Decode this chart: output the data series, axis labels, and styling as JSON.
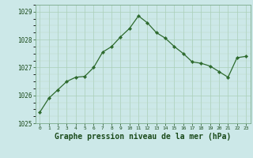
{
  "x": [
    0,
    1,
    2,
    3,
    4,
    5,
    6,
    7,
    8,
    9,
    10,
    11,
    12,
    13,
    14,
    15,
    16,
    17,
    18,
    19,
    20,
    21,
    22,
    23
  ],
  "y": [
    1025.4,
    1025.9,
    1026.2,
    1026.5,
    1026.65,
    1026.68,
    1027.0,
    1027.55,
    1027.75,
    1028.1,
    1028.4,
    1028.85,
    1028.6,
    1028.25,
    1028.05,
    1027.75,
    1027.5,
    1027.2,
    1027.15,
    1027.05,
    1026.85,
    1026.65,
    1027.35,
    1027.4
  ],
  "line_color": "#2d6a2d",
  "marker_color": "#2d6a2d",
  "bg_color": "#cce8e8",
  "grid_color_major": "#aacfb8",
  "grid_color_minor": "#bcd8c4",
  "title": "Graphe pression niveau de la mer (hPa)",
  "title_color": "#1a4a1a",
  "xlim": [
    -0.5,
    23.5
  ],
  "ylim": [
    1025.0,
    1029.25
  ],
  "yticks": [
    1025,
    1026,
    1027,
    1028,
    1029
  ],
  "xticks": [
    0,
    1,
    2,
    3,
    4,
    5,
    6,
    7,
    8,
    9,
    10,
    11,
    12,
    13,
    14,
    15,
    16,
    17,
    18,
    19,
    20,
    21,
    22,
    23
  ],
  "x_tick_fontsize": 4.5,
  "y_tick_fontsize": 5.5,
  "title_fontsize": 7.0,
  "marker_size": 2.2,
  "line_width": 0.9
}
